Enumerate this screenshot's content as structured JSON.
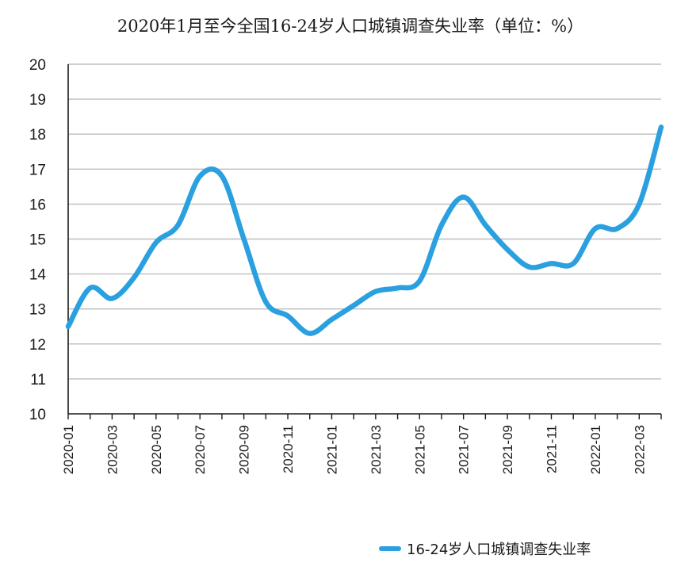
{
  "chart_data": {
    "type": "line",
    "title": "2020年1月至今全国16-24岁人口城镇调查失业率（单位：%）",
    "xlabel": "",
    "ylabel": "",
    "ylim": [
      10,
      20
    ],
    "yticks": [
      10,
      11,
      12,
      13,
      14,
      15,
      16,
      17,
      18,
      19,
      20
    ],
    "grid": true,
    "legend_position": "bottom-right",
    "x": [
      "2020-01",
      "2020-02",
      "2020-03",
      "2020-04",
      "2020-05",
      "2020-06",
      "2020-07",
      "2020-08",
      "2020-09",
      "2020-10",
      "2020-11",
      "2020-12",
      "2021-01",
      "2021-02",
      "2021-03",
      "2021-04",
      "2021-05",
      "2021-06",
      "2021-07",
      "2021-08",
      "2021-09",
      "2021-10",
      "2021-11",
      "2021-12",
      "2022-01",
      "2022-02",
      "2022-03",
      "2022-04"
    ],
    "xtick_labels": [
      "2020-01",
      "2020-03",
      "2020-05",
      "2020-07",
      "2020-09",
      "2020-11",
      "2021-01",
      "2021-03",
      "2021-05",
      "2021-07",
      "2021-09",
      "2021-11",
      "2022-01",
      "2022-03"
    ],
    "series": [
      {
        "name": "16-24岁人口城镇调查失业率",
        "color": "#2aa0e0",
        "values": [
          12.5,
          13.6,
          13.3,
          13.9,
          14.9,
          15.4,
          16.8,
          16.8,
          15.0,
          13.2,
          12.8,
          12.3,
          12.7,
          13.1,
          13.5,
          13.6,
          13.8,
          15.4,
          16.2,
          15.4,
          14.7,
          14.2,
          14.3,
          14.3,
          15.3,
          15.3,
          16.0,
          18.2
        ]
      }
    ]
  }
}
